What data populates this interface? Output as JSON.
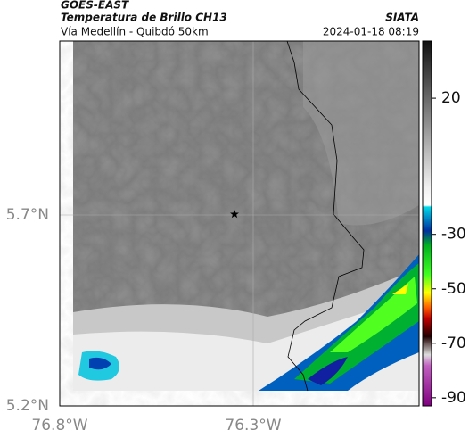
{
  "header": {
    "title": "GOES-EAST",
    "subtitle": "Temperatura de Brillo CH13",
    "region": "Vía Medellín - Quibdó 50km",
    "source": "SIATA",
    "timestamp": "2024-01-18 08:19"
  },
  "map": {
    "lat_labels": [
      "5.7°N",
      "5.2°N"
    ],
    "lon_labels": [
      "76.8°W",
      "76.3°W"
    ]
  },
  "colorbar": {
    "lim": [
      -93,
      41
    ],
    "ticks": [
      20,
      -30,
      -50,
      -70,
      -90
    ]
  }
}
